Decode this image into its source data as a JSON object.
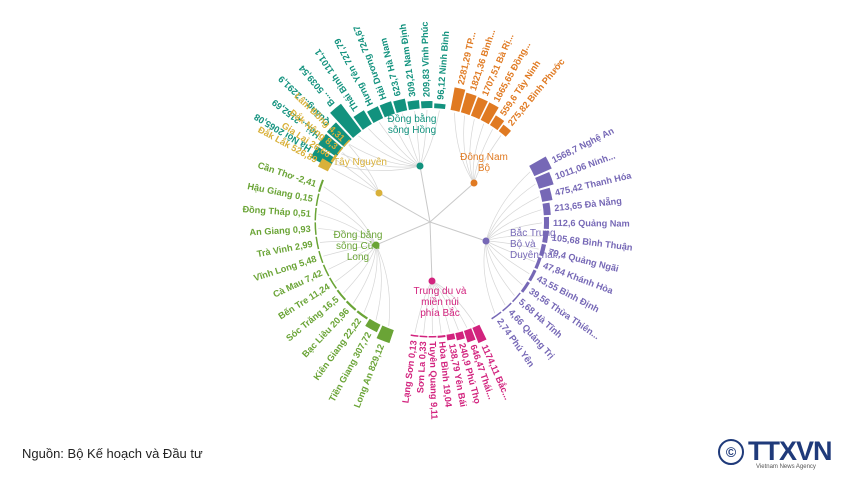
{
  "source": "Nguồn: Bộ Kế hoạch và Đầu tư",
  "logo": {
    "mark": "©",
    "brand": "TTXVN",
    "subtitle": "Vietnam News Agency",
    "color": "#1f3a7a"
  },
  "chart_data": {
    "type": "radial-bar",
    "title": "",
    "groups": [
      {
        "name": "Đồng bằng sông Hồng",
        "label_lines": [
          "Đồng bằng",
          "sông Hồng"
        ],
        "color": "#12927e",
        "items": [
          {
            "name": "Hà Nội",
            "value": 2065.08,
            "label": "Hà Nội 2065,08"
          },
          {
            "name": "Hải Phòng",
            "value": 2152.69,
            "label": "Hải... 2152,69"
          },
          {
            "name": "Quảng Ninh",
            "value": 2291.9,
            "label": "Quảng... 2291,9"
          },
          {
            "name": "Bắc Ninh",
            "value": 5039.54,
            "label": "B... 5039,54"
          },
          {
            "name": "Thái Bình",
            "value": 1101.1,
            "label": "Thái Bình 1101,1"
          },
          {
            "name": "Hưng Yên",
            "value": 727.79,
            "label": "Hưng Yên 727,79"
          },
          {
            "name": "Hải Dương",
            "value": 724.67,
            "label": "Hải Dương 724,67"
          },
          {
            "name": "Hà Nam",
            "value": 623.7,
            "label": "623,7 Hà Nam"
          },
          {
            "name": "Nam Định",
            "value": 309.21,
            "label": "309,21 Nam Định"
          },
          {
            "name": "Vĩnh Phúc",
            "value": 209.83,
            "label": "209,83 Vĩnh Phúc"
          },
          {
            "name": "Ninh Bình",
            "value": 96.12,
            "label": "96,12 Ninh Bình"
          }
        ]
      },
      {
        "name": "Đông Nam Bộ",
        "label_lines": [
          "Đông Nam",
          "Bộ"
        ],
        "color": "#e07a22",
        "items": [
          {
            "name": "TP. Hồ Chí Minh",
            "value": 2281.29,
            "label": "2281,29 TP..."
          },
          {
            "name": "Bình Dương",
            "value": 1821.36,
            "label": "1821,36 Bình..."
          },
          {
            "name": "Bà Rịa - Vũng Tàu",
            "value": 1707.51,
            "label": "1707,51 Bà Rị..."
          },
          {
            "name": "Đồng Nai",
            "value": 1665.65,
            "label": "1665,65 Đồng..."
          },
          {
            "name": "Tây Ninh",
            "value": 559.6,
            "label": "559,6 Tây Ninh"
          },
          {
            "name": "Bình Phước",
            "value": 275.82,
            "label": "275,82 Bình Phước"
          }
        ]
      },
      {
        "name": "Bắc Trung Bộ và Duyên hải miền Trung",
        "label_lines": [
          "Bắc Trung",
          "Bộ và",
          "Duyên hải..."
        ],
        "color": "#7668b6",
        "items": [
          {
            "name": "Nghệ An",
            "value": 1568.7,
            "label": "1568,7 Nghệ An"
          },
          {
            "name": "Ninh Thuận",
            "value": 1011.06,
            "label": "1011,06 Ninh..."
          },
          {
            "name": "Thanh Hóa",
            "value": 475.42,
            "label": "475,42 Thanh Hóa"
          },
          {
            "name": "Đà Nẵng",
            "value": 213.65,
            "label": "213,65 Đà Nẵng"
          },
          {
            "name": "Quảng Nam",
            "value": 112.6,
            "label": "112,6 Quảng Nam"
          },
          {
            "name": "Bình Thuận",
            "value": 105.68,
            "label": "105,68 Bình Thuận"
          },
          {
            "name": "Quảng Ngãi",
            "value": 79.4,
            "label": "79,4 Quảng Ngãi"
          },
          {
            "name": "Khánh Hòa",
            "value": 47.84,
            "label": "47,84 Khánh Hòa"
          },
          {
            "name": "Bình Định",
            "value": 43.55,
            "label": "43,55 Bình Định"
          },
          {
            "name": "Thừa Thiên Huế",
            "value": 39.56,
            "label": "39,56 Thừa Thiên..."
          },
          {
            "name": "Hà Tĩnh",
            "value": 5.68,
            "label": "5,68 Hà Tĩnh"
          },
          {
            "name": "Quảng Trị",
            "value": 4.66,
            "label": "4,66 Quảng Trị"
          },
          {
            "name": "Phú Yên",
            "value": 2.74,
            "label": "2,74 Phú Yên"
          }
        ]
      },
      {
        "name": "Trung du và miền núi phía Bắc",
        "label_lines": [
          "Trung du và",
          "miền núi",
          "phía Bắc"
        ],
        "color": "#d2237e",
        "items": [
          {
            "name": "Bắc Giang",
            "value": 1174.11,
            "label": "1174,11 Bắc..."
          },
          {
            "name": "Thái Nguyên",
            "value": 646.47,
            "label": "646,47 Thái..."
          },
          {
            "name": "Phú Thọ",
            "value": 240.9,
            "label": "240,9 Phú Thọ"
          },
          {
            "name": "Yên Bái",
            "value": 138.79,
            "label": "138,79 Yên Bái"
          },
          {
            "name": "Hòa Bình",
            "value": 19.04,
            "label": "Hòa Bình 19,04"
          },
          {
            "name": "Tuyên Quang",
            "value": 9.11,
            "label": "Tuyên Quang 9,11"
          },
          {
            "name": "Sơn La",
            "value": 0.33,
            "label": "Sơn La 0,33"
          },
          {
            "name": "Lạng Sơn",
            "value": 0.13,
            "label": "Lạng Sơn 0,13"
          }
        ]
      },
      {
        "name": "Đồng bằng sông Cửu Long",
        "label_lines": [
          "Đồng bằng",
          "sông Cửu",
          "Long"
        ],
        "color": "#6aa436",
        "items": [
          {
            "name": "Long An",
            "value": 829.12,
            "label": "Long An 829,12"
          },
          {
            "name": "Tiền Giang",
            "value": 307.72,
            "label": "Tiền Giang 307,72"
          },
          {
            "name": "Kiên Giang",
            "value": 22.22,
            "label": "Kiên Giang 22,22"
          },
          {
            "name": "Bạc Liêu",
            "value": 20.96,
            "label": "Bạc Liêu 20,96"
          },
          {
            "name": "Sóc Trăng",
            "value": 16.5,
            "label": "Sóc Trăng 16,5"
          },
          {
            "name": "Bến Tre",
            "value": 11.24,
            "label": "Bến Tre 11,24"
          },
          {
            "name": "Cà Mau",
            "value": 7.42,
            "label": "Cà Mau 7,42"
          },
          {
            "name": "Vĩnh Long",
            "value": 5.48,
            "label": "Vĩnh Long 5,48"
          },
          {
            "name": "Trà Vinh",
            "value": 2.99,
            "label": "Trà Vinh 2,99"
          },
          {
            "name": "An Giang",
            "value": 0.93,
            "label": "An Giang 0,93"
          },
          {
            "name": "Đồng Tháp",
            "value": 0.51,
            "label": "Đồng Tháp 0,51"
          },
          {
            "name": "Hậu Giang",
            "value": 0.15,
            "label": "Hậu Giang 0,15"
          },
          {
            "name": "Cần Thơ",
            "value": -2.41,
            "label": "Cần Thơ -2,41"
          }
        ]
      },
      {
        "name": "Tây Nguyên",
        "label_lines": [
          "Tây Nguyên"
        ],
        "color": "#d9b13a",
        "items": [
          {
            "name": "Đắk Lắk",
            "value": 526.89,
            "label": "Đắk Lắk 526,89"
          },
          {
            "name": "Gia Lai",
            "value": 26.66,
            "label": "Gia Lai 26,66"
          },
          {
            "name": "Đắk Nông",
            "value": 8.3,
            "label": "Đắk Nông 8,3"
          },
          {
            "name": "Lâm Đồng",
            "value": 4.31,
            "label": "Lâm Đồng 4,31"
          }
        ]
      }
    ]
  }
}
